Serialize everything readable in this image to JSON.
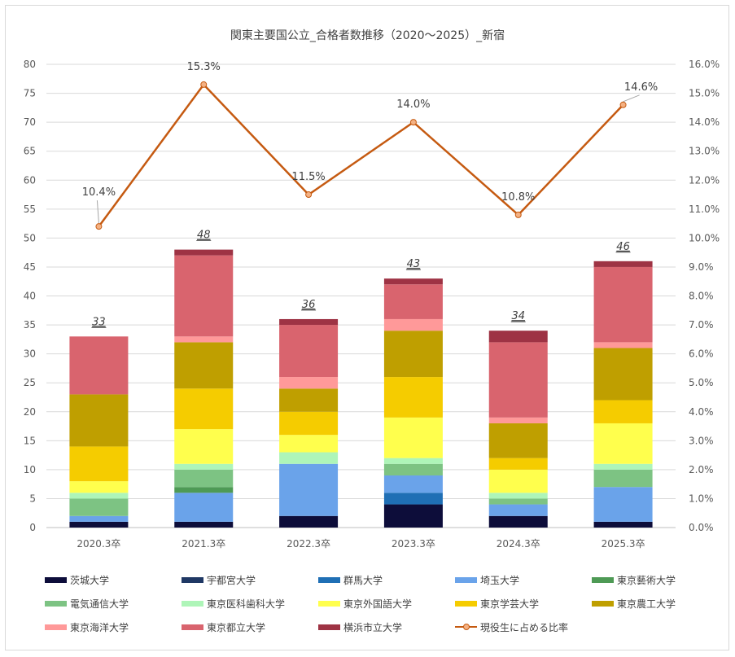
{
  "chart_data": {
    "type": "bar",
    "stacked": true,
    "title": "関東主要国公立_合格者数推移（2020～2025）_新宿",
    "categories": [
      "2020.3卒",
      "2021.3卒",
      "2022.3卒",
      "2023.3卒",
      "2024.3卒",
      "2025.3卒"
    ],
    "ylim": [
      0,
      80
    ],
    "y_ticks": [
      "0",
      "5",
      "10",
      "15",
      "20",
      "25",
      "30",
      "35",
      "40",
      "45",
      "50",
      "55",
      "60",
      "65",
      "70",
      "75",
      "80"
    ],
    "y2lim": [
      0,
      16
    ],
    "y2_ticks": [
      "0.0%",
      "1.0%",
      "2.0%",
      "3.0%",
      "4.0%",
      "5.0%",
      "6.0%",
      "7.0%",
      "8.0%",
      "9.0%",
      "10.0%",
      "11.0%",
      "12.0%",
      "13.0%",
      "14.0%",
      "15.0%",
      "16.0%"
    ],
    "grid": true,
    "legend_position": "bottom",
    "series": [
      {
        "name": "茨城大学",
        "color": "#0d0d3a",
        "values": [
          1,
          1,
          2,
          4,
          2,
          1
        ]
      },
      {
        "name": "宇都宮大学",
        "color": "#1f3864",
        "values": [
          0,
          0,
          0,
          0,
          0,
          0
        ]
      },
      {
        "name": "群馬大学",
        "color": "#1f6fb5",
        "values": [
          0,
          0,
          0,
          2,
          0,
          0
        ]
      },
      {
        "name": "埼玉大学",
        "color": "#6aa3ea",
        "values": [
          1,
          5,
          9,
          3,
          2,
          6
        ]
      },
      {
        "name": "東京藝術大学",
        "color": "#4e9a55",
        "values": [
          0,
          1,
          0,
          0,
          0,
          0
        ]
      },
      {
        "name": "電気通信大学",
        "color": "#7dc383",
        "values": [
          3,
          3,
          0,
          2,
          1,
          3
        ]
      },
      {
        "name": "東京医科歯科大学",
        "color": "#aef5b8",
        "values": [
          1,
          1,
          2,
          1,
          1,
          1
        ]
      },
      {
        "name": "東京外国語大学",
        "color": "#ffff4d",
        "values": [
          2,
          6,
          3,
          7,
          4,
          7
        ]
      },
      {
        "name": "東京学芸大学",
        "color": "#f5cc00",
        "values": [
          6,
          7,
          4,
          7,
          2,
          4
        ]
      },
      {
        "name": "東京農工大学",
        "color": "#bf9f00",
        "values": [
          9,
          8,
          4,
          8,
          6,
          9
        ]
      },
      {
        "name": "東京海洋大学",
        "color": "#ff9999",
        "values": [
          0,
          1,
          2,
          2,
          1,
          1
        ]
      },
      {
        "name": "東京都立大学",
        "color": "#d9646e",
        "values": [
          10,
          14,
          9,
          6,
          13,
          13
        ]
      },
      {
        "name": "横浜市立大学",
        "color": "#9e3344",
        "values": [
          0,
          1,
          1,
          1,
          2,
          1
        ]
      }
    ],
    "totals": [
      33,
      48,
      36,
      43,
      34,
      46
    ],
    "line_series": {
      "name": "現役生に占める比率",
      "color": "#c55a11",
      "axis": "right",
      "values": [
        10.4,
        15.3,
        11.5,
        14.0,
        10.8,
        14.6
      ],
      "labels": [
        "10.4%",
        "15.3%",
        "11.5%",
        "14.0%",
        "10.8%",
        "14.6%"
      ]
    }
  }
}
